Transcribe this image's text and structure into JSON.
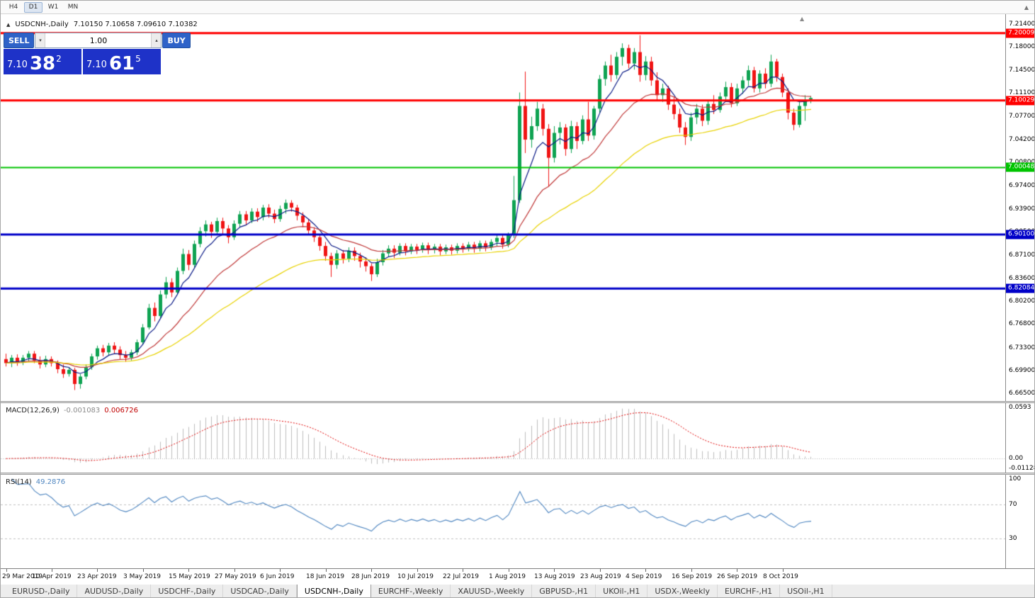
{
  "toolbar": {
    "timeframes": [
      {
        "label": "H4",
        "active": false
      },
      {
        "label": "D1",
        "active": true
      },
      {
        "label": "W1",
        "active": false
      },
      {
        "label": "MN",
        "active": false
      }
    ]
  },
  "markers": {
    "panel_toggle": "▲",
    "shift_marker": "▲",
    "toolbar_caret": "▲"
  },
  "chart": {
    "title_symbol": "USDCNH-,Daily",
    "title_ohlc": "7.10150 7.10658 7.09610 7.10382",
    "trade_panel": {
      "sell_label": "SELL",
      "buy_label": "BUY",
      "volume": "1.00",
      "sell_price": {
        "base": "7.10",
        "pips": "38",
        "sup": "2"
      },
      "buy_price": {
        "base": "7.10",
        "pips": "61",
        "sup": "5"
      }
    }
  },
  "colors": {
    "trade_button": "#2e62c8",
    "trade_price_box": "#1e32c8"
  },
  "chart_data": {
    "type": "candlestick",
    "symbol": "USDCNH",
    "timeframe": "Daily",
    "price_range": [
      6.66,
      7.222
    ],
    "up_color": "#0fa352",
    "down_color": "#f01414",
    "y_ticks": [
      "7.21400",
      "7.18000",
      "7.14500",
      "7.11100",
      "7.07700",
      "7.04200",
      "7.00800",
      "6.97400",
      "6.93900",
      "6.90500",
      "6.87100",
      "6.83600",
      "6.80200",
      "6.76800",
      "6.73300",
      "6.69900",
      "6.66500"
    ],
    "h_lines": [
      {
        "price": 7.20009,
        "label": "7.20009",
        "color": "#ff0000",
        "width": 3
      },
      {
        "price": 7.10029,
        "label": "7.10029",
        "color": "#ff0000",
        "width": 3
      },
      {
        "price": 7.00048,
        "label": "7.00048",
        "color": "#00c400",
        "width": 2
      },
      {
        "price": 6.901,
        "label": "6.90100",
        "color": "#0000c8",
        "width": 3
      },
      {
        "price": 6.82084,
        "label": "6.82084",
        "color": "#0000c8",
        "width": 3
      }
    ],
    "ma_lines": [
      {
        "period": 6,
        "type": "ema",
        "color": "#0a1a86"
      },
      {
        "period": 18,
        "type": "ema",
        "color": "#c03a3a"
      },
      {
        "period": 42,
        "type": "ema",
        "color": "#e8d200"
      }
    ],
    "x_labels": [
      {
        "i": 0,
        "t": "29 Mar 2019"
      },
      {
        "i": 8,
        "t": "10 Apr 2019"
      },
      {
        "i": 16,
        "t": "23 Apr 2019"
      },
      {
        "i": 24,
        "t": "3 May 2019"
      },
      {
        "i": 32,
        "t": "15 May 2019"
      },
      {
        "i": 40,
        "t": "27 May 2019"
      },
      {
        "i": 48,
        "t": "6 Jun 2019"
      },
      {
        "i": 56,
        "t": "18 Jun 2019"
      },
      {
        "i": 64,
        "t": "28 Jun 2019"
      },
      {
        "i": 72,
        "t": "10 Jul 2019"
      },
      {
        "i": 80,
        "t": "22 Jul 2019"
      },
      {
        "i": 88,
        "t": "1 Aug 2019"
      },
      {
        "i": 96,
        "t": "13 Aug 2019"
      },
      {
        "i": 104,
        "t": "23 Aug 2019"
      },
      {
        "i": 112,
        "t": "4 Sep 2019"
      },
      {
        "i": 120,
        "t": "16 Sep 2019"
      },
      {
        "i": 128,
        "t": "26 Sep 2019"
      },
      {
        "i": 136,
        "t": "8 Oct 2019"
      }
    ],
    "candles": [
      [
        6.716,
        6.724,
        6.705,
        6.71
      ],
      [
        6.71,
        6.722,
        6.704,
        6.718
      ],
      [
        6.718,
        6.723,
        6.706,
        6.711
      ],
      [
        6.711,
        6.722,
        6.707,
        6.718
      ],
      [
        6.718,
        6.728,
        6.712,
        6.724
      ],
      [
        6.724,
        6.728,
        6.71,
        6.714
      ],
      [
        6.714,
        6.72,
        6.702,
        6.708
      ],
      [
        6.708,
        6.721,
        6.704,
        6.716
      ],
      [
        6.716,
        6.72,
        6.705,
        6.71
      ],
      [
        6.71,
        6.714,
        6.695,
        6.701
      ],
      [
        6.701,
        6.708,
        6.688,
        6.694
      ],
      [
        6.694,
        6.704,
        6.69,
        6.7
      ],
      [
        6.7,
        6.703,
        6.67,
        6.679
      ],
      [
        6.679,
        6.694,
        6.672,
        6.69
      ],
      [
        6.69,
        6.708,
        6.686,
        6.704
      ],
      [
        6.704,
        6.724,
        6.7,
        6.72
      ],
      [
        6.72,
        6.736,
        6.715,
        6.732
      ],
      [
        6.732,
        6.737,
        6.72,
        6.726
      ],
      [
        6.726,
        6.74,
        6.722,
        6.736
      ],
      [
        6.736,
        6.741,
        6.724,
        6.73
      ],
      [
        6.73,
        6.735,
        6.716,
        6.722
      ],
      [
        6.722,
        6.728,
        6.712,
        6.718
      ],
      [
        6.718,
        6.73,
        6.714,
        6.726
      ],
      [
        6.726,
        6.745,
        6.722,
        6.741
      ],
      [
        6.741,
        6.768,
        6.738,
        6.763
      ],
      [
        6.763,
        6.798,
        6.76,
        6.792
      ],
      [
        6.792,
        6.8,
        6.772,
        6.78
      ],
      [
        6.78,
        6.818,
        6.776,
        6.812
      ],
      [
        6.812,
        6.838,
        6.806,
        6.83
      ],
      [
        6.83,
        6.836,
        6.808,
        6.815
      ],
      [
        6.815,
        6.852,
        6.812,
        6.847
      ],
      [
        6.847,
        6.88,
        6.842,
        6.872
      ],
      [
        6.872,
        6.878,
        6.848,
        6.856
      ],
      [
        6.856,
        6.892,
        6.852,
        6.887
      ],
      [
        6.887,
        6.912,
        6.882,
        6.906
      ],
      [
        6.906,
        6.922,
        6.898,
        6.916
      ],
      [
        6.916,
        6.92,
        6.896,
        6.905
      ],
      [
        6.905,
        6.926,
        6.9,
        6.921
      ],
      [
        6.921,
        6.926,
        6.902,
        6.91
      ],
      [
        6.91,
        6.915,
        6.888,
        6.897
      ],
      [
        6.897,
        6.922,
        6.893,
        6.917
      ],
      [
        6.917,
        6.936,
        6.912,
        6.931
      ],
      [
        6.931,
        6.936,
        6.915,
        6.922
      ],
      [
        6.922,
        6.94,
        6.918,
        6.935
      ],
      [
        6.935,
        6.94,
        6.92,
        6.927
      ],
      [
        6.927,
        6.945,
        6.922,
        6.941
      ],
      [
        6.941,
        6.946,
        6.926,
        6.932
      ],
      [
        6.932,
        6.938,
        6.918,
        6.924
      ],
      [
        6.924,
        6.944,
        6.92,
        6.939
      ],
      [
        6.939,
        6.953,
        6.932,
        6.948
      ],
      [
        6.948,
        6.952,
        6.935,
        6.941
      ],
      [
        6.941,
        6.945,
        6.922,
        6.929
      ],
      [
        6.929,
        6.934,
        6.912,
        6.919
      ],
      [
        6.919,
        6.924,
        6.9,
        6.907
      ],
      [
        6.907,
        6.912,
        6.89,
        6.897
      ],
      [
        6.897,
        6.902,
        6.877,
        6.884
      ],
      [
        6.884,
        6.89,
        6.862,
        6.869
      ],
      [
        6.869,
        6.874,
        6.838,
        6.856
      ],
      [
        6.856,
        6.878,
        6.85,
        6.873
      ],
      [
        6.873,
        6.878,
        6.858,
        6.865
      ],
      [
        6.865,
        6.882,
        6.86,
        6.877
      ],
      [
        6.877,
        6.882,
        6.862,
        6.869
      ],
      [
        6.869,
        6.874,
        6.852,
        6.861
      ],
      [
        6.861,
        6.867,
        6.846,
        6.854
      ],
      [
        6.854,
        6.858,
        6.832,
        6.842
      ],
      [
        6.842,
        6.865,
        6.838,
        6.86
      ],
      [
        6.86,
        6.878,
        6.855,
        6.873
      ],
      [
        6.873,
        6.885,
        6.868,
        6.88
      ],
      [
        6.88,
        6.885,
        6.866,
        6.874
      ],
      [
        6.874,
        6.888,
        6.87,
        6.884
      ],
      [
        6.884,
        6.888,
        6.87,
        6.876
      ],
      [
        6.876,
        6.887,
        6.872,
        6.883
      ],
      [
        6.883,
        6.887,
        6.872,
        6.878
      ],
      [
        6.878,
        6.889,
        6.874,
        6.885
      ],
      [
        6.885,
        6.889,
        6.872,
        6.878
      ],
      [
        6.878,
        6.887,
        6.873,
        6.883
      ],
      [
        6.883,
        6.887,
        6.87,
        6.876
      ],
      [
        6.876,
        6.886,
        6.872,
        6.882
      ],
      [
        6.882,
        6.886,
        6.871,
        6.877
      ],
      [
        6.877,
        6.888,
        6.873,
        6.884
      ],
      [
        6.884,
        6.888,
        6.874,
        6.88
      ],
      [
        6.88,
        6.89,
        6.876,
        6.886
      ],
      [
        6.886,
        6.89,
        6.874,
        6.88
      ],
      [
        6.88,
        6.892,
        6.876,
        6.888
      ],
      [
        6.888,
        6.892,
        6.876,
        6.882
      ],
      [
        6.882,
        6.894,
        6.878,
        6.89
      ],
      [
        6.89,
        6.9,
        6.884,
        6.896
      ],
      [
        6.896,
        6.9,
        6.88,
        6.886
      ],
      [
        6.886,
        6.904,
        6.882,
        6.9
      ],
      [
        6.9,
        6.988,
        6.896,
        6.952
      ],
      [
        6.952,
        7.112,
        6.948,
        7.092
      ],
      [
        7.092,
        7.143,
        7.022,
        7.042
      ],
      [
        7.042,
        7.076,
        7.03,
        7.062
      ],
      [
        7.062,
        7.098,
        7.055,
        7.088
      ],
      [
        7.088,
        7.095,
        7.048,
        7.058
      ],
      [
        7.058,
        7.065,
        6.972,
        7.015
      ],
      [
        7.015,
        7.062,
        7.008,
        7.052
      ],
      [
        7.052,
        7.068,
        7.035,
        7.06
      ],
      [
        7.06,
        7.065,
        7.018,
        7.028
      ],
      [
        7.028,
        7.07,
        7.022,
        7.062
      ],
      [
        7.062,
        7.068,
        7.028,
        7.04
      ],
      [
        7.04,
        7.078,
        7.035,
        7.072
      ],
      [
        7.072,
        7.098,
        7.04,
        7.048
      ],
      [
        7.048,
        7.092,
        7.042,
        7.088
      ],
      [
        7.088,
        7.138,
        7.082,
        7.132
      ],
      [
        7.132,
        7.158,
        7.122,
        7.152
      ],
      [
        7.152,
        7.168,
        7.128,
        7.138
      ],
      [
        7.138,
        7.172,
        7.132,
        7.165
      ],
      [
        7.165,
        7.185,
        7.152,
        7.178
      ],
      [
        7.178,
        7.183,
        7.148,
        7.155
      ],
      [
        7.155,
        7.178,
        7.146,
        7.172
      ],
      [
        7.172,
        7.197,
        7.128,
        7.138
      ],
      [
        7.138,
        7.166,
        7.13,
        7.158
      ],
      [
        7.158,
        7.165,
        7.122,
        7.13
      ],
      [
        7.13,
        7.142,
        7.1,
        7.108
      ],
      [
        7.108,
        7.125,
        7.098,
        7.118
      ],
      [
        7.118,
        7.122,
        7.086,
        7.094
      ],
      [
        7.094,
        7.105,
        7.072,
        7.08
      ],
      [
        7.08,
        7.088,
        7.052,
        7.06
      ],
      [
        7.06,
        7.068,
        7.034,
        7.046
      ],
      [
        7.046,
        7.082,
        7.04,
        7.075
      ],
      [
        7.075,
        7.095,
        7.065,
        7.088
      ],
      [
        7.088,
        7.094,
        7.062,
        7.07
      ],
      [
        7.07,
        7.1,
        7.064,
        7.095
      ],
      [
        7.095,
        7.108,
        7.08,
        7.086
      ],
      [
        7.086,
        7.112,
        7.082,
        7.106
      ],
      [
        7.106,
        7.128,
        7.098,
        7.12
      ],
      [
        7.12,
        7.126,
        7.09,
        7.096
      ],
      [
        7.096,
        7.125,
        7.092,
        7.118
      ],
      [
        7.118,
        7.136,
        7.11,
        7.13
      ],
      [
        7.13,
        7.152,
        7.122,
        7.145
      ],
      [
        7.145,
        7.15,
        7.112,
        7.118
      ],
      [
        7.118,
        7.145,
        7.112,
        7.14
      ],
      [
        7.14,
        7.148,
        7.118,
        7.125
      ],
      [
        7.125,
        7.168,
        7.12,
        7.158
      ],
      [
        7.158,
        7.162,
        7.128,
        7.135
      ],
      [
        7.135,
        7.14,
        7.105,
        7.112
      ],
      [
        7.112,
        7.118,
        7.072,
        7.082
      ],
      [
        7.082,
        7.088,
        7.056,
        7.064
      ],
      [
        7.064,
        7.098,
        7.06,
        7.092
      ],
      [
        7.092,
        7.108,
        7.07,
        7.1
      ],
      [
        7.1015,
        7.1066,
        7.0961,
        7.1038
      ]
    ]
  },
  "macd": {
    "label": "MACD(12,26,9)",
    "value_main": "-0.001083",
    "value_signal": "0.006726",
    "fast": 12,
    "slow": 26,
    "signal": 9,
    "range": [
      -0.011289,
      0.0593
    ],
    "histogram_color": "#bcbcbc",
    "signal_color": "#e00000",
    "scale": [
      {
        "label": "0.0593",
        "value": 0.0593
      },
      {
        "label": "0.00",
        "value": 0
      },
      {
        "label": "-0.011289",
        "value": -0.011289
      }
    ]
  },
  "rsi": {
    "label": "RSI(14)",
    "value": "49.2876",
    "period": 14,
    "levels": [
      70,
      30
    ],
    "range": [
      0,
      100
    ],
    "line_color": "#4f86c0",
    "scale": [
      {
        "label": "100",
        "value": 100
      },
      {
        "label": "70",
        "value": 70
      },
      {
        "label": "30",
        "value": 30
      }
    ]
  },
  "tabs": {
    "items": [
      {
        "label": "EURUSD-,Daily",
        "active": false
      },
      {
        "label": "AUDUSD-,Daily",
        "active": false
      },
      {
        "label": "USDCHF-,Daily",
        "active": false
      },
      {
        "label": "USDCAD-,Daily",
        "active": false
      },
      {
        "label": "USDCNH-,Daily",
        "active": true
      },
      {
        "label": "EURCHF-,Weekly",
        "active": false
      },
      {
        "label": "XAUUSD-,Weekly",
        "active": false
      },
      {
        "label": "GBPUSD-,H1",
        "active": false
      },
      {
        "label": "UKOil-,H1",
        "active": false
      },
      {
        "label": "USDX-,Weekly",
        "active": false
      },
      {
        "label": "EURCHF-,H1",
        "active": false
      },
      {
        "label": "USOil-,H1",
        "active": false
      }
    ]
  }
}
